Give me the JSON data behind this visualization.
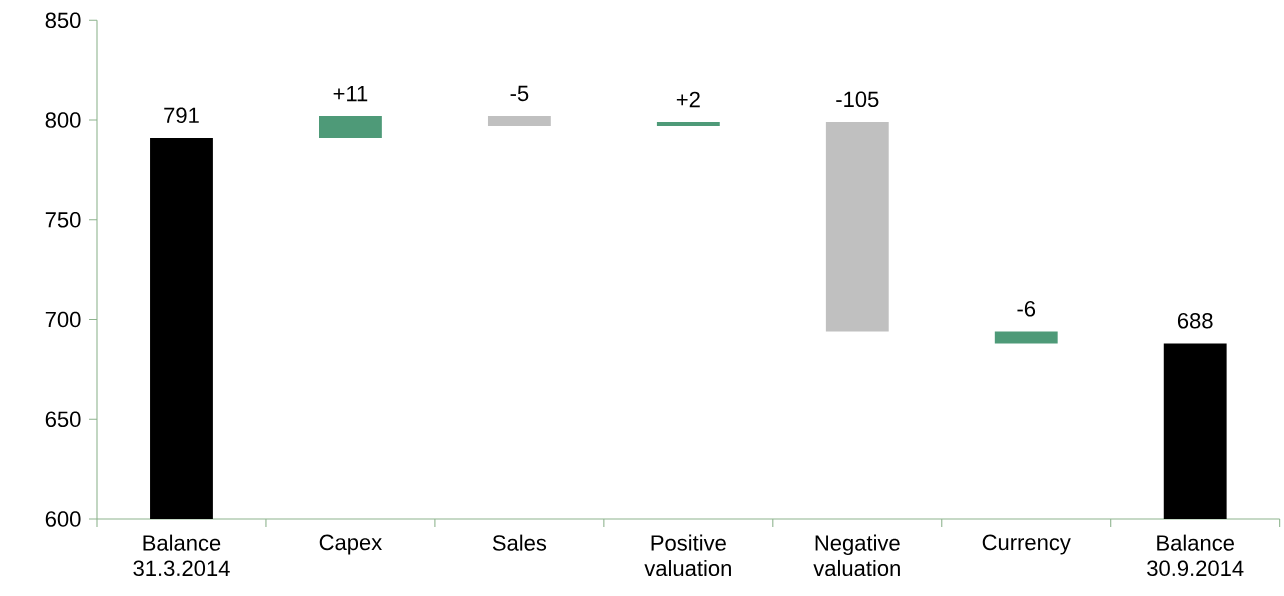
{
  "chart_data": {
    "type": "bar",
    "categories": [
      "Balance 31.3.2014",
      "Capex",
      "Sales",
      "Positive valuation",
      "Negative valuation",
      "Currency",
      "Balance 30.9.2014"
    ],
    "values": [
      791,
      11,
      -5,
      2,
      -105,
      -6,
      688
    ],
    "base": [
      null,
      791,
      802,
      797,
      799,
      694,
      null
    ],
    "colors": [
      "#000000",
      "#4e9a78",
      "#c0c0c0",
      "#4e9a78",
      "#c0c0c0",
      "#4e9a78",
      "#000000"
    ],
    "value_labels": [
      "791",
      "+11",
      "-5",
      "+2",
      "-105",
      "-6",
      "688"
    ],
    "ylim": [
      600,
      850
    ],
    "yticks": [
      600,
      650,
      700,
      750,
      800,
      850
    ]
  }
}
